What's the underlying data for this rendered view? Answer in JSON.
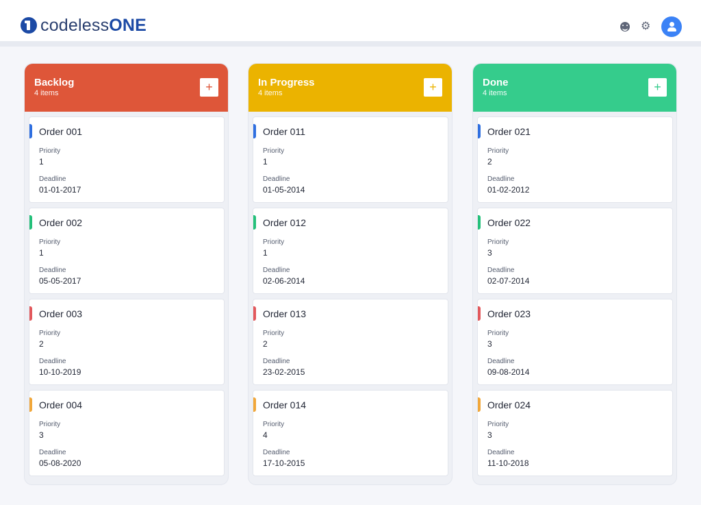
{
  "app": {
    "logo_thin": "codeless",
    "logo_bold": "ONE"
  },
  "header": {
    "icons": [
      "smiley-icon",
      "gear-icon",
      "user-avatar-icon"
    ]
  },
  "labels": {
    "priority": "Priority",
    "deadline": "Deadline"
  },
  "colors": {
    "backlog": "#de5639",
    "in_progress": "#ebb300",
    "done": "#35cc8c",
    "blue": "#2f6fe0",
    "green": "#24c07a",
    "red": "#e2585c",
    "orange": "#f1a73a"
  },
  "columns": [
    {
      "title": "Backlog",
      "count": "4 items",
      "add": "+",
      "cards": [
        {
          "title": "Order 001",
          "priority": "1",
          "deadline": "01-01-2017"
        },
        {
          "title": "Order 002",
          "priority": "1",
          "deadline": "05-05-2017"
        },
        {
          "title": "Order 003",
          "priority": "2",
          "deadline": "10-10-2019"
        },
        {
          "title": "Order 004",
          "priority": "3",
          "deadline": "05-08-2020"
        }
      ]
    },
    {
      "title": "In Progress",
      "count": "4 items",
      "add": "+",
      "cards": [
        {
          "title": "Order 011",
          "priority": "1",
          "deadline": "01-05-2014"
        },
        {
          "title": "Order 012",
          "priority": "1",
          "deadline": "02-06-2014"
        },
        {
          "title": "Order 013",
          "priority": "2",
          "deadline": "23-02-2015"
        },
        {
          "title": "Order 014",
          "priority": "4",
          "deadline": "17-10-2015"
        }
      ]
    },
    {
      "title": "Done",
      "count": "4 items",
      "add": "+",
      "cards": [
        {
          "title": "Order 021",
          "priority": "2",
          "deadline": "01-02-2012"
        },
        {
          "title": "Order 022",
          "priority": "3",
          "deadline": "02-07-2014"
        },
        {
          "title": "Order 023",
          "priority": "3",
          "deadline": "09-08-2014"
        },
        {
          "title": "Order 024",
          "priority": "3",
          "deadline": "11-10-2018"
        }
      ]
    }
  ]
}
